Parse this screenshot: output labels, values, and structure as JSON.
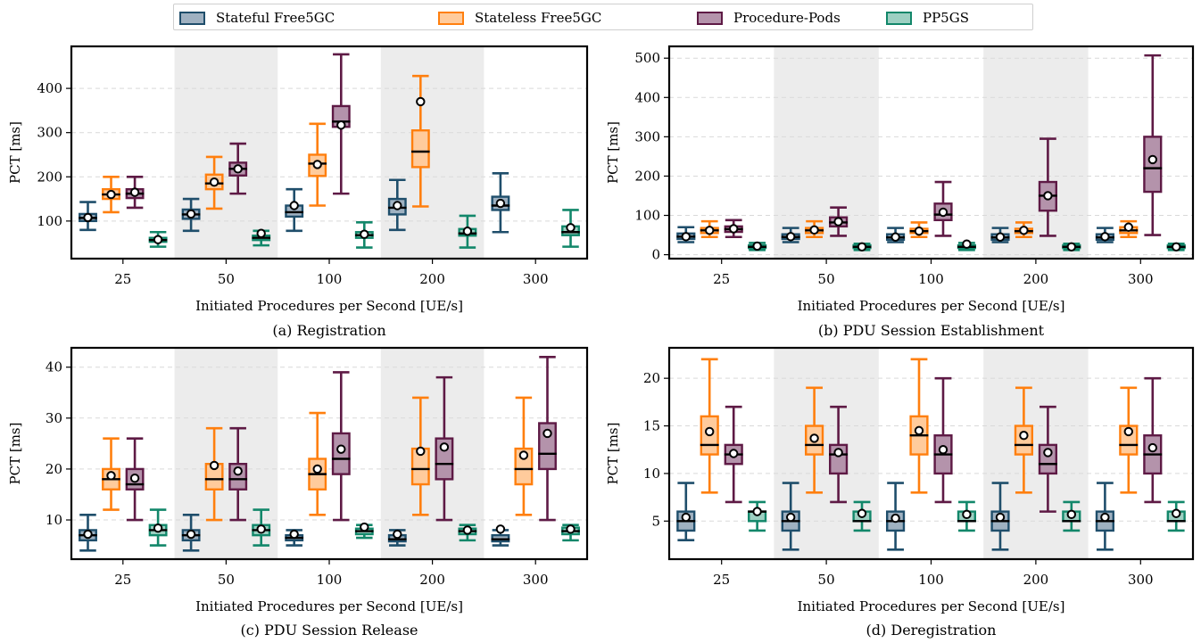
{
  "legend": [
    {
      "name": "Stateful Free5GC",
      "stroke": "#1f4e6b",
      "fill": "#9fb1c1"
    },
    {
      "name": "Stateless Free5GC",
      "stroke": "#ff7f0e",
      "fill": "#ffcb9c"
    },
    {
      "name": "Procedure-Pods",
      "stroke": "#5e1a45",
      "fill": "#b493ab"
    },
    {
      "name": "PP5GS",
      "stroke": "#12876a",
      "fill": "#9dd0c2"
    }
  ],
  "chart_data": [
    {
      "type": "box",
      "caption": "(a) Registration",
      "xlabel": "Initiated Procedures per Second [UE/s]",
      "ylabel": "PCT [ms]",
      "categories": [
        "25",
        "50",
        "100",
        "200",
        "300"
      ],
      "shaded_categories": [
        "50",
        "200"
      ],
      "ylim": [
        15,
        495
      ],
      "yticks": [
        100,
        200,
        300,
        400
      ],
      "grid": "horizontal dashed",
      "series": [
        {
          "name": "Stateful Free5GC",
          "boxes": [
            {
              "whislo": 80,
              "q1": 100,
              "med": 107,
              "q3": 116,
              "whishi": 143,
              "mean": 108
            },
            {
              "whislo": 78,
              "q1": 105,
              "med": 115,
              "q3": 126,
              "whishi": 150,
              "mean": 116
            },
            {
              "whislo": 78,
              "q1": 110,
              "med": 120,
              "q3": 135,
              "whishi": 172,
              "mean": 135
            },
            {
              "whislo": 80,
              "q1": 115,
              "med": 130,
              "q3": 150,
              "whishi": 193,
              "mean": 135
            },
            {
              "whislo": 75,
              "q1": 125,
              "med": 135,
              "q3": 155,
              "whishi": 208,
              "mean": 140
            }
          ]
        },
        {
          "name": "Stateless Free5GC",
          "boxes": [
            {
              "whislo": 120,
              "q1": 150,
              "med": 160,
              "q3": 172,
              "whishi": 200,
              "mean": 160
            },
            {
              "whislo": 128,
              "q1": 172,
              "med": 185,
              "q3": 205,
              "whishi": 245,
              "mean": 188
            },
            {
              "whislo": 135,
              "q1": 202,
              "med": 230,
              "q3": 250,
              "whishi": 320,
              "mean": 228
            },
            {
              "whislo": 133,
              "q1": 222,
              "med": 257,
              "q3": 305,
              "whishi": 428,
              "mean": 370
            },
            null
          ]
        },
        {
          "name": "Procedure-Pods",
          "boxes": [
            {
              "whislo": 130,
              "q1": 152,
              "med": 162,
              "q3": 172,
              "whishi": 200,
              "mean": 165
            },
            {
              "whislo": 162,
              "q1": 203,
              "med": 218,
              "q3": 232,
              "whishi": 275,
              "mean": 218
            },
            {
              "whislo": 162,
              "q1": 313,
              "med": 325,
              "q3": 360,
              "whishi": 477,
              "mean": 317
            },
            null,
            null
          ]
        },
        {
          "name": "PP5GS",
          "boxes": [
            {
              "whislo": 42,
              "q1": 53,
              "med": 57,
              "q3": 62,
              "whishi": 75,
              "mean": 58
            },
            {
              "whislo": 45,
              "q1": 57,
              "med": 62,
              "q3": 67,
              "whishi": 78,
              "mean": 72
            },
            {
              "whislo": 40,
              "q1": 62,
              "med": 68,
              "q3": 75,
              "whishi": 97,
              "mean": 70
            },
            {
              "whislo": 40,
              "q1": 67,
              "med": 72,
              "q3": 82,
              "whishi": 112,
              "mean": 77
            },
            {
              "whislo": 42,
              "q1": 68,
              "med": 75,
              "q3": 88,
              "whishi": 125,
              "mean": 85
            }
          ]
        }
      ]
    },
    {
      "type": "box",
      "caption": "(b) PDU Session Establishment",
      "xlabel": "Initiated Procedures per Second [UE/s]",
      "ylabel": "PCT [ms]",
      "categories": [
        "25",
        "50",
        "100",
        "200",
        "300"
      ],
      "shaded_categories": [
        "50",
        "200"
      ],
      "ylim": [
        -10,
        530
      ],
      "yticks": [
        0,
        100,
        200,
        300,
        400,
        500
      ],
      "grid": "horizontal dashed",
      "series": [
        {
          "name": "Stateful Free5GC",
          "boxes": [
            {
              "whislo": 32,
              "q1": 40,
              "med": 46,
              "q3": 54,
              "whishi": 70,
              "mean": 46
            },
            {
              "whislo": 32,
              "q1": 40,
              "med": 45,
              "q3": 52,
              "whishi": 68,
              "mean": 46
            },
            {
              "whislo": 32,
              "q1": 38,
              "med": 44,
              "q3": 52,
              "whishi": 68,
              "mean": 45
            },
            {
              "whislo": 32,
              "q1": 38,
              "med": 44,
              "q3": 52,
              "whishi": 68,
              "mean": 45
            },
            {
              "whislo": 32,
              "q1": 38,
              "med": 44,
              "q3": 52,
              "whishi": 68,
              "mean": 46
            }
          ]
        },
        {
          "name": "Stateless Free5GC",
          "boxes": [
            {
              "whislo": 45,
              "q1": 55,
              "med": 62,
              "q3": 68,
              "whishi": 85,
              "mean": 62
            },
            {
              "whislo": 45,
              "q1": 55,
              "med": 62,
              "q3": 68,
              "whishi": 85,
              "mean": 63
            },
            {
              "whislo": 45,
              "q1": 55,
              "med": 60,
              "q3": 66,
              "whishi": 82,
              "mean": 60
            },
            {
              "whislo": 45,
              "q1": 55,
              "med": 60,
              "q3": 66,
              "whishi": 82,
              "mean": 62
            },
            {
              "whislo": 45,
              "q1": 55,
              "med": 62,
              "q3": 70,
              "whishi": 85,
              "mean": 70
            }
          ]
        },
        {
          "name": "Procedure-Pods",
          "boxes": [
            {
              "whislo": 45,
              "q1": 58,
              "med": 65,
              "q3": 72,
              "whishi": 88,
              "mean": 66
            },
            {
              "whislo": 48,
              "q1": 72,
              "med": 82,
              "q3": 95,
              "whishi": 120,
              "mean": 84
            },
            {
              "whislo": 48,
              "q1": 88,
              "med": 102,
              "q3": 130,
              "whishi": 185,
              "mean": 108
            },
            {
              "whislo": 48,
              "q1": 112,
              "med": 150,
              "q3": 185,
              "whishi": 295,
              "mean": 150
            },
            {
              "whislo": 50,
              "q1": 160,
              "med": 220,
              "q3": 300,
              "whishi": 507,
              "mean": 242
            }
          ]
        },
        {
          "name": "PP5GS",
          "boxes": [
            {
              "whislo": 12,
              "q1": 17,
              "med": 20,
              "q3": 24,
              "whishi": 30,
              "mean": 22
            },
            {
              "whislo": 12,
              "q1": 17,
              "med": 20,
              "q3": 24,
              "whishi": 28,
              "mean": 20
            },
            {
              "whislo": 12,
              "q1": 17,
              "med": 20,
              "q3": 24,
              "whishi": 30,
              "mean": 27
            },
            {
              "whislo": 12,
              "q1": 17,
              "med": 20,
              "q3": 24,
              "whishi": 28,
              "mean": 20
            },
            {
              "whislo": 12,
              "q1": 17,
              "med": 20,
              "q3": 24,
              "whishi": 28,
              "mean": 20
            }
          ]
        }
      ]
    },
    {
      "type": "box",
      "caption": "(c) PDU Session Release",
      "xlabel": "Initiated Procedures per Second [UE/s]",
      "ylabel": "PCT [ms]",
      "categories": [
        "25",
        "50",
        "100",
        "200",
        "300"
      ],
      "shaded_categories": [
        "50",
        "200"
      ],
      "ylim": [
        2.3,
        43.8
      ],
      "yticks": [
        10,
        20,
        30,
        40
      ],
      "grid": "horizontal dashed",
      "series": [
        {
          "name": "Stateful Free5GC",
          "boxes": [
            {
              "whislo": 4,
              "q1": 6,
              "med": 7,
              "q3": 8,
              "whishi": 11,
              "mean": 7.2
            },
            {
              "whislo": 4,
              "q1": 6,
              "med": 7,
              "q3": 8,
              "whishi": 11,
              "mean": 7.2
            },
            {
              "whislo": 5,
              "q1": 6,
              "med": 6.5,
              "q3": 7,
              "whishi": 8,
              "mean": 7.2
            },
            {
              "whislo": 5,
              "q1": 5.8,
              "med": 6.2,
              "q3": 7,
              "whishi": 8,
              "mean": 7.2
            },
            {
              "whislo": 5,
              "q1": 5.8,
              "med": 6.2,
              "q3": 7,
              "whishi": 8,
              "mean": 8.2
            }
          ]
        },
        {
          "name": "Stateless Free5GC",
          "boxes": [
            {
              "whislo": 12,
              "q1": 16,
              "med": 18,
              "q3": 20,
              "whishi": 26,
              "mean": 18.7
            },
            {
              "whislo": 10,
              "q1": 16,
              "med": 18,
              "q3": 21,
              "whishi": 28,
              "mean": 20.7
            },
            {
              "whislo": 11,
              "q1": 16,
              "med": 19,
              "q3": 22,
              "whishi": 31,
              "mean": 20.0
            },
            {
              "whislo": 11,
              "q1": 17,
              "med": 20,
              "q3": 24,
              "whishi": 34,
              "mean": 23.5
            },
            {
              "whislo": 11,
              "q1": 17,
              "med": 20,
              "q3": 24,
              "whishi": 34,
              "mean": 22.7
            }
          ]
        },
        {
          "name": "Procedure-Pods",
          "boxes": [
            {
              "whislo": 10,
              "q1": 16,
              "med": 17,
              "q3": 20,
              "whishi": 26,
              "mean": 18.2
            },
            {
              "whislo": 10,
              "q1": 16,
              "med": 18,
              "q3": 21,
              "whishi": 28,
              "mean": 19.6
            },
            {
              "whislo": 10,
              "q1": 19,
              "med": 22,
              "q3": 27,
              "whishi": 39,
              "mean": 23.9
            },
            {
              "whislo": 10,
              "q1": 18,
              "med": 21,
              "q3": 26,
              "whishi": 38,
              "mean": 24.3
            },
            {
              "whislo": 10,
              "q1": 20,
              "med": 23,
              "q3": 29,
              "whishi": 42,
              "mean": 27.0
            }
          ]
        },
        {
          "name": "PP5GS",
          "boxes": [
            {
              "whislo": 5,
              "q1": 7,
              "med": 8,
              "q3": 9,
              "whishi": 12,
              "mean": 8.4
            },
            {
              "whislo": 5,
              "q1": 7,
              "med": 8,
              "q3": 9,
              "whishi": 12,
              "mean": 8.2
            },
            {
              "whislo": 6.5,
              "q1": 7.2,
              "med": 7.8,
              "q3": 8.3,
              "whishi": 9,
              "mean": 8.6
            },
            {
              "whislo": 6,
              "q1": 7.2,
              "med": 7.8,
              "q3": 8.3,
              "whishi": 9,
              "mean": 8.0
            },
            {
              "whislo": 6,
              "q1": 7.2,
              "med": 7.8,
              "q3": 8.5,
              "whishi": 9,
              "mean": 8.2
            }
          ]
        }
      ]
    },
    {
      "type": "box",
      "caption": "(d) Deregistration",
      "xlabel": "Initiated Procedures per Second [UE/s]",
      "ylabel": "PCT [ms]",
      "categories": [
        "25",
        "50",
        "100",
        "200",
        "300"
      ],
      "shaded_categories": [
        "50",
        "200"
      ],
      "ylim": [
        1,
        23.2
      ],
      "yticks": [
        5,
        10,
        15,
        20
      ],
      "grid": "horizontal dashed",
      "series": [
        {
          "name": "Stateful Free5GC",
          "boxes": [
            {
              "whislo": 3,
              "q1": 4,
              "med": 5,
              "q3": 6,
              "whishi": 9,
              "mean": 5.4
            },
            {
              "whislo": 2,
              "q1": 4,
              "med": 5,
              "q3": 6,
              "whishi": 9,
              "mean": 5.4
            },
            {
              "whislo": 2,
              "q1": 4,
              "med": 5,
              "q3": 6,
              "whishi": 9,
              "mean": 5.3
            },
            {
              "whislo": 2,
              "q1": 4,
              "med": 5,
              "q3": 6,
              "whishi": 9,
              "mean": 5.4
            },
            {
              "whislo": 2,
              "q1": 4,
              "med": 5,
              "q3": 6,
              "whishi": 9,
              "mean": 5.4
            }
          ]
        },
        {
          "name": "Stateless Free5GC",
          "boxes": [
            {
              "whislo": 8,
              "q1": 12,
              "med": 13,
              "q3": 16,
              "whishi": 22,
              "mean": 14.4
            },
            {
              "whislo": 8,
              "q1": 12,
              "med": 13,
              "q3": 15,
              "whishi": 19,
              "mean": 13.7
            },
            {
              "whislo": 8,
              "q1": 12,
              "med": 14,
              "q3": 16,
              "whishi": 22,
              "mean": 14.5
            },
            {
              "whislo": 8,
              "q1": 12,
              "med": 13,
              "q3": 15,
              "whishi": 19,
              "mean": 14.0
            },
            {
              "whislo": 8,
              "q1": 12,
              "med": 13,
              "q3": 15,
              "whishi": 19,
              "mean": 14.4
            }
          ]
        },
        {
          "name": "Procedure-Pods",
          "boxes": [
            {
              "whislo": 7,
              "q1": 11,
              "med": 12,
              "q3": 13,
              "whishi": 17,
              "mean": 12.1
            },
            {
              "whislo": 7,
              "q1": 10,
              "med": 12,
              "q3": 13,
              "whishi": 17,
              "mean": 12.2
            },
            {
              "whislo": 7,
              "q1": 10,
              "med": 12,
              "q3": 14,
              "whishi": 20,
              "mean": 12.5
            },
            {
              "whislo": 6,
              "q1": 10,
              "med": 11,
              "q3": 13,
              "whishi": 17,
              "mean": 12.2
            },
            {
              "whislo": 7,
              "q1": 10,
              "med": 12,
              "q3": 14,
              "whishi": 20,
              "mean": 12.7
            }
          ]
        },
        {
          "name": "PP5GS",
          "boxes": [
            {
              "whislo": 4,
              "q1": 5,
              "med": 6,
              "q3": 6,
              "whishi": 7,
              "mean": 6.0
            },
            {
              "whislo": 4,
              "q1": 5,
              "med": 5,
              "q3": 6,
              "whishi": 7,
              "mean": 5.8
            },
            {
              "whislo": 4,
              "q1": 5,
              "med": 5,
              "q3": 6,
              "whishi": 7,
              "mean": 5.7
            },
            {
              "whislo": 4,
              "q1": 5,
              "med": 5,
              "q3": 6,
              "whishi": 7,
              "mean": 5.7
            },
            {
              "whislo": 4,
              "q1": 5,
              "med": 5,
              "q3": 6,
              "whishi": 7,
              "mean": 5.8
            }
          ]
        }
      ]
    }
  ]
}
